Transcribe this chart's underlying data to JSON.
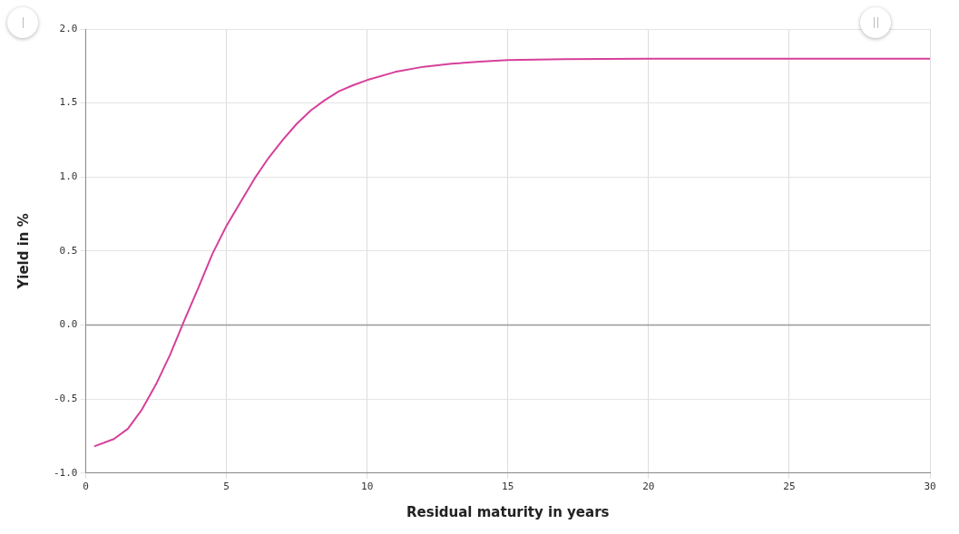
{
  "chart_data": {
    "type": "line",
    "xlabel": "Residual maturity in years",
    "ylabel": "Yield in %",
    "x": [
      0.3,
      1,
      1.5,
      2,
      2.5,
      3,
      3.5,
      4,
      4.5,
      5,
      5.5,
      6,
      6.5,
      7,
      7.5,
      8,
      8.5,
      9,
      9.5,
      10,
      11,
      12,
      13,
      14,
      15,
      17,
      20,
      25,
      30
    ],
    "series": [
      {
        "color": "#d6409a",
        "values": [
          -0.82,
          -0.77,
          -0.7,
          -0.57,
          -0.4,
          -0.2,
          0.03,
          0.25,
          0.48,
          0.67,
          0.83,
          0.99,
          1.13,
          1.25,
          1.36,
          1.45,
          1.52,
          1.58,
          1.62,
          1.655,
          1.71,
          1.745,
          1.765,
          1.78,
          1.79,
          1.797,
          1.8,
          1.8,
          1.8
        ]
      }
    ],
    "xlim": [
      0,
      30
    ],
    "xticks": [
      0,
      5,
      10,
      15,
      20,
      25,
      30
    ],
    "ylim": [
      -1,
      2
    ],
    "yticks": [
      {
        "value": -1,
        "label": "-1.0"
      },
      {
        "value": -0.5,
        "label": "-0.5"
      },
      {
        "value": 0,
        "label": "0.0"
      },
      {
        "value": 0.5,
        "label": "0.5"
      },
      {
        "value": 1,
        "label": "1.0"
      },
      {
        "value": 1.5,
        "label": "1.5"
      },
      {
        "value": 2,
        "label": "2.0"
      }
    ],
    "ref_lines": [
      {
        "axis": "y",
        "value": 0,
        "color": "#999999"
      }
    ],
    "grid": true,
    "legend": false,
    "marker": "none",
    "line_style": "solid"
  }
}
